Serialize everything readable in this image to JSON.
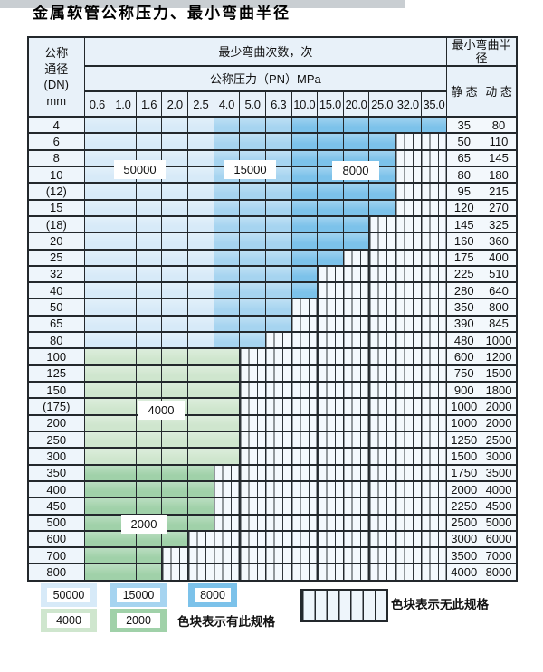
{
  "page": {
    "title": "金属软管公称压力、最小弯曲半径"
  },
  "colors": {
    "cycles_50000": "#d7eaf8",
    "cycles_15000": "#a6d4f0",
    "cycles_8000": "#7cc2ea",
    "cycles_4000": "#cfe6ce",
    "cycles_2000": "#a0d1a9",
    "grid_line": "#23282c",
    "header_bg": "#e8f1f9"
  },
  "table": {
    "header": {
      "dn_lines": [
        "公称",
        "通径",
        "(DN)",
        "mm"
      ],
      "bend_title": "最少弯曲次数，次",
      "pressure_title": "公称压力（PN）MPa",
      "pressure_cols": [
        "0.6",
        "1.0",
        "1.6",
        "2.0",
        "2.5",
        "4.0",
        "5.0",
        "6.3",
        "10.0",
        "15.0",
        "20.0",
        "25.0",
        "32.0",
        "35.0"
      ],
      "radius_title": "最小弯曲半径",
      "static_label": "静 态",
      "dynamic_label": "动 态"
    },
    "zone_labels": [
      "50000",
      "15000",
      "8000",
      "4000",
      "2000"
    ],
    "rows": [
      {
        "dn": "4",
        "colored": 14,
        "zone": "blue",
        "static": "35",
        "dynamic": "80"
      },
      {
        "dn": "6",
        "colored": 12,
        "zone": "blue",
        "static": "50",
        "dynamic": "110"
      },
      {
        "dn": "8",
        "colored": 12,
        "zone": "blue",
        "static": "65",
        "dynamic": "145"
      },
      {
        "dn": "10",
        "colored": 12,
        "zone": "blue",
        "static": "80",
        "dynamic": "180"
      },
      {
        "dn": "(12)",
        "colored": 12,
        "zone": "blue",
        "static": "95",
        "dynamic": "215"
      },
      {
        "dn": "15",
        "colored": 12,
        "zone": "blue",
        "static": "120",
        "dynamic": "270"
      },
      {
        "dn": "(18)",
        "colored": 11,
        "zone": "blue",
        "static": "145",
        "dynamic": "325"
      },
      {
        "dn": "20",
        "colored": 11,
        "zone": "blue",
        "static": "160",
        "dynamic": "360"
      },
      {
        "dn": "25",
        "colored": 10,
        "zone": "blue",
        "static": "175",
        "dynamic": "400"
      },
      {
        "dn": "32",
        "colored": 9,
        "zone": "blue",
        "static": "225",
        "dynamic": "510"
      },
      {
        "dn": "40",
        "colored": 9,
        "zone": "blue",
        "static": "280",
        "dynamic": "640"
      },
      {
        "dn": "50",
        "colored": 8,
        "zone": "blue",
        "static": "350",
        "dynamic": "800"
      },
      {
        "dn": "65",
        "colored": 8,
        "zone": "blue",
        "static": "390",
        "dynamic": "845"
      },
      {
        "dn": "80",
        "colored": 7,
        "zone": "blue",
        "static": "480",
        "dynamic": "1000"
      },
      {
        "dn": "100",
        "colored": 6,
        "zone": "green-4000",
        "static": "600",
        "dynamic": "1200"
      },
      {
        "dn": "125",
        "colored": 6,
        "zone": "green-4000",
        "static": "750",
        "dynamic": "1500"
      },
      {
        "dn": "150",
        "colored": 6,
        "zone": "green-4000",
        "static": "900",
        "dynamic": "1800"
      },
      {
        "dn": "(175)",
        "colored": 6,
        "zone": "green-4000",
        "static": "1000",
        "dynamic": "2000"
      },
      {
        "dn": "200",
        "colored": 6,
        "zone": "green-4000",
        "static": "1000",
        "dynamic": "2000"
      },
      {
        "dn": "250",
        "colored": 6,
        "zone": "green-4000",
        "static": "1250",
        "dynamic": "2500"
      },
      {
        "dn": "300",
        "colored": 6,
        "zone": "green-4000",
        "static": "1500",
        "dynamic": "3000"
      },
      {
        "dn": "350",
        "colored": 5,
        "zone": "green-2000",
        "static": "1750",
        "dynamic": "3500"
      },
      {
        "dn": "400",
        "colored": 5,
        "zone": "green-2000",
        "static": "2000",
        "dynamic": "4000"
      },
      {
        "dn": "450",
        "colored": 5,
        "zone": "green-2000",
        "static": "2250",
        "dynamic": "4500"
      },
      {
        "dn": "500",
        "colored": 5,
        "zone": "green-2000",
        "static": "2500",
        "dynamic": "5000"
      },
      {
        "dn": "600",
        "colored": 4,
        "zone": "green-2000",
        "static": "3000",
        "dynamic": "6000"
      },
      {
        "dn": "700",
        "colored": 3,
        "zone": "green-2000",
        "static": "3500",
        "dynamic": "7000"
      },
      {
        "dn": "800",
        "colored": 3,
        "zone": "green-2000",
        "static": "4000",
        "dynamic": "8000"
      }
    ]
  },
  "legend": {
    "items": [
      {
        "label": "50000",
        "color_key": "cycles_50000"
      },
      {
        "label": "15000",
        "color_key": "cycles_15000"
      },
      {
        "label": "8000",
        "color_key": "cycles_8000"
      },
      {
        "label": "4000",
        "color_key": "cycles_4000"
      },
      {
        "label": "2000",
        "color_key": "cycles_2000"
      }
    ],
    "has_spec_note": "色块表示有此规格",
    "no_spec_note": "色块表示无此规格"
  }
}
